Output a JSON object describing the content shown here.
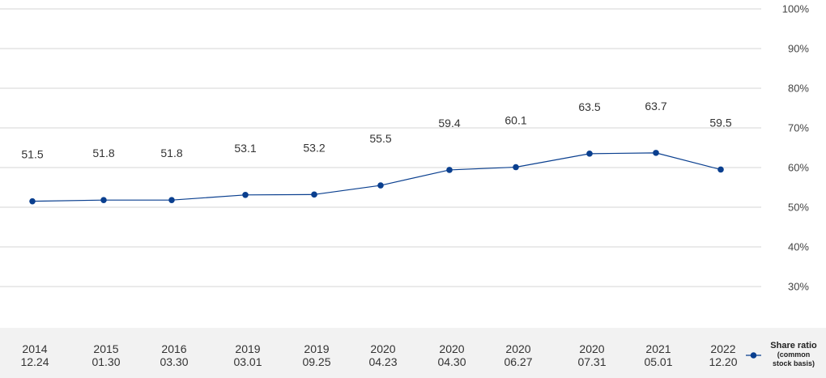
{
  "chart_data": {
    "type": "line",
    "categories": [
      [
        "2014",
        "12.24"
      ],
      [
        "2015",
        "01.30"
      ],
      [
        "2016",
        "03.30"
      ],
      [
        "2019",
        "03.01"
      ],
      [
        "2019",
        "09.25"
      ],
      [
        "2020",
        "04.23"
      ],
      [
        "2020",
        "04.30"
      ],
      [
        "2020",
        "06.27"
      ],
      [
        "2020",
        "07.31"
      ],
      [
        "2021",
        "05.01"
      ],
      [
        "2022",
        "12.20"
      ]
    ],
    "series": [
      {
        "name": "Share ratio (common stock basis)",
        "legend_lines": [
          "Share ratio",
          "(common",
          "stock basis)"
        ],
        "values": [
          51.5,
          51.8,
          51.8,
          53.1,
          53.2,
          55.5,
          59.4,
          60.1,
          63.5,
          63.7,
          59.5
        ],
        "color": "#0a3f8f"
      }
    ],
    "yticks": [
      "30%",
      "40%",
      "50%",
      "60%",
      "70%",
      "80%",
      "90%",
      "100%"
    ],
    "ylim": [
      25,
      100
    ],
    "grid": true,
    "legend_position": "right",
    "axis_band_color": "#f2f2f2",
    "grid_color": "#d6d6d6"
  }
}
